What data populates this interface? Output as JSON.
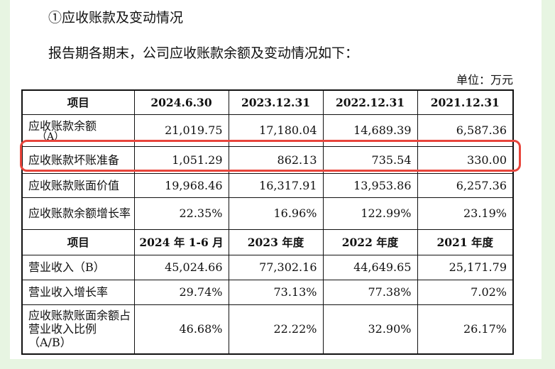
{
  "document": {
    "section_title": "①应收账款及变动情况",
    "intro": "报告期各期末，公司应收账款余额及变动情况如下：",
    "unit": "单位：万元"
  },
  "table": {
    "header1": [
      "项目",
      "2024.6.30",
      "2023.12.31",
      "2022.12.31",
      "2021.12.31"
    ],
    "rows1": [
      {
        "label": "应收账款余额",
        "label_tail": "（A）",
        "values": [
          "21,019.75",
          "17,180.04",
          "14,689.39",
          "6,587.36"
        ]
      },
      {
        "label": "应收账款坏账准备",
        "values": [
          "1,051.29",
          "862.13",
          "735.54",
          "330.00"
        ]
      },
      {
        "label": "应收账款账面价值",
        "values": [
          "19,968.46",
          "16,317.91",
          "13,953.86",
          "6,257.36"
        ]
      },
      {
        "label": "应收账款余额增长率",
        "values": [
          "22.35%",
          "16.96%",
          "122.99%",
          "23.19%"
        ]
      }
    ],
    "header2": [
      "项目",
      "2024 年 1-6 月",
      "2023 年度",
      "2022 年度",
      "2021 年度"
    ],
    "rows2": [
      {
        "label": "营业收入（B）",
        "values": [
          "45,024.66",
          "77,302.16",
          "44,649.65",
          "25,171.79"
        ]
      },
      {
        "label": "营业收入增长率",
        "values": [
          "29.74%",
          "73.13%",
          "77.38%",
          "7.02%"
        ]
      },
      {
        "label": "应收账款账面余额占营业收入比例（A/B）",
        "values": [
          "46.68%",
          "22.22%",
          "32.90%",
          "26.17%"
        ]
      }
    ]
  },
  "colors": {
    "background": "#e7f5e2",
    "page": "#ffffff",
    "highlight": "#e8453c"
  }
}
